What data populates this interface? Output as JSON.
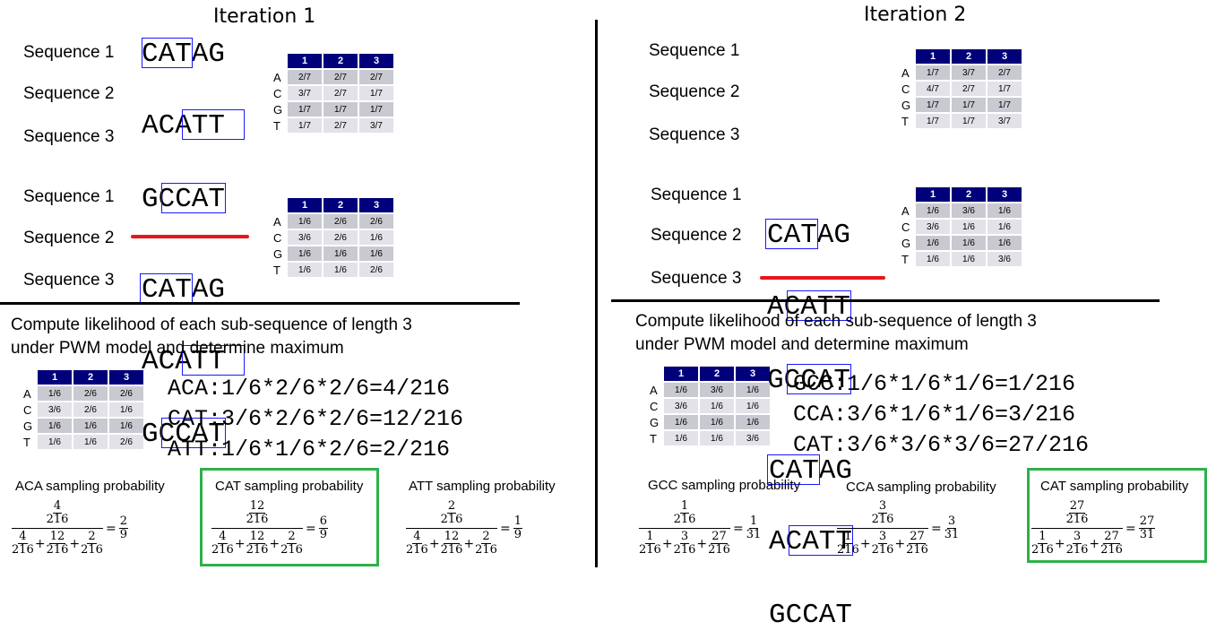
{
  "left": {
    "title": "Iteration 1",
    "block1": {
      "sequences": [
        {
          "label": "Sequence 1",
          "text": "CATAG"
        },
        {
          "label": "Sequence 2",
          "text": "ACATT"
        },
        {
          "label": "Sequence 3",
          "text": "GCCAT"
        }
      ],
      "pwm": {
        "headers": [
          "1",
          "2",
          "3"
        ],
        "rows": [
          {
            "base": "A",
            "values": [
              "2/7",
              "2/7",
              "2/7"
            ]
          },
          {
            "base": "C",
            "values": [
              "3/7",
              "2/7",
              "1/7"
            ]
          },
          {
            "base": "G",
            "values": [
              "1/7",
              "1/7",
              "1/7"
            ]
          },
          {
            "base": "T",
            "values": [
              "1/7",
              "2/7",
              "3/7"
            ]
          }
        ]
      }
    },
    "block2": {
      "sequences": [
        {
          "label": "Sequence 1",
          "text": "CATAG"
        },
        {
          "label": "Sequence 2",
          "text": "ACATT"
        },
        {
          "label": "Sequence 3",
          "text": "GCCAT"
        }
      ],
      "pwm": {
        "headers": [
          "1",
          "2",
          "3"
        ],
        "rows": [
          {
            "base": "A",
            "values": [
              "1/6",
              "2/6",
              "2/6"
            ]
          },
          {
            "base": "C",
            "values": [
              "3/6",
              "2/6",
              "1/6"
            ]
          },
          {
            "base": "G",
            "values": [
              "1/6",
              "1/6",
              "1/6"
            ]
          },
          {
            "base": "T",
            "values": [
              "1/6",
              "1/6",
              "2/6"
            ]
          }
        ]
      }
    },
    "heading_line1": "Compute likelihood of each sub-sequence of length 3",
    "heading_line2": "under PWM model and determine maximum",
    "pwm3": {
      "headers": [
        "1",
        "2",
        "3"
      ],
      "rows": [
        {
          "base": "A",
          "values": [
            "1/6",
            "2/6",
            "2/6"
          ]
        },
        {
          "base": "C",
          "values": [
            "3/6",
            "2/6",
            "1/6"
          ]
        },
        {
          "base": "G",
          "values": [
            "1/6",
            "1/6",
            "1/6"
          ]
        },
        {
          "base": "T",
          "values": [
            "1/6",
            "1/6",
            "2/6"
          ]
        }
      ]
    },
    "calcs": [
      "ACA:1/6*2/6*2/6=4/216",
      "CAT:3/6*2/6*2/6=12/216",
      "ATT:1/6*1/6*2/6=2/216"
    ],
    "probs": [
      {
        "title": "ACA sampling probability",
        "num": "4",
        "den": "216",
        "terms": [
          "4",
          "12",
          "2"
        ],
        "result_num": "2",
        "result_den": "9"
      },
      {
        "title": "CAT sampling probability",
        "num": "12",
        "den": "216",
        "terms": [
          "4",
          "12",
          "2"
        ],
        "result_num": "6",
        "result_den": "9"
      },
      {
        "title": "ATT sampling probability",
        "num": "2",
        "den": "216",
        "terms": [
          "4",
          "12",
          "2"
        ],
        "result_num": "1",
        "result_den": "9"
      }
    ]
  },
  "right": {
    "title": "Iteration 2",
    "block1": {
      "sequences": [
        {
          "label": "Sequence 1",
          "text": "CATAG"
        },
        {
          "label": "Sequence 2",
          "text": "ACATT"
        },
        {
          "label": "Sequence 3",
          "text": "GCCAT"
        }
      ],
      "pwm": {
        "headers": [
          "1",
          "2",
          "3"
        ],
        "rows": [
          {
            "base": "A",
            "values": [
              "1/7",
              "3/7",
              "2/7"
            ]
          },
          {
            "base": "C",
            "values": [
              "4/7",
              "2/7",
              "1/7"
            ]
          },
          {
            "base": "G",
            "values": [
              "1/7",
              "1/7",
              "1/7"
            ]
          },
          {
            "base": "T",
            "values": [
              "1/7",
              "1/7",
              "3/7"
            ]
          }
        ]
      }
    },
    "block2": {
      "sequences": [
        {
          "label": "Sequence 1",
          "text": "CATAG"
        },
        {
          "label": "Sequence 2",
          "text": "ACATT"
        },
        {
          "label": "Sequence 3",
          "text": "GCCAT"
        }
      ],
      "pwm": {
        "headers": [
          "1",
          "2",
          "3"
        ],
        "rows": [
          {
            "base": "A",
            "values": [
              "1/6",
              "3/6",
              "1/6"
            ]
          },
          {
            "base": "C",
            "values": [
              "3/6",
              "1/6",
              "1/6"
            ]
          },
          {
            "base": "G",
            "values": [
              "1/6",
              "1/6",
              "1/6"
            ]
          },
          {
            "base": "T",
            "values": [
              "1/6",
              "1/6",
              "3/6"
            ]
          }
        ]
      }
    },
    "heading_line1": "Compute likelihood of each sub-sequence of length 3",
    "heading_line2": "under PWM model and determine maximum",
    "pwm3": {
      "headers": [
        "1",
        "2",
        "3"
      ],
      "rows": [
        {
          "base": "A",
          "values": [
            "1/6",
            "3/6",
            "1/6"
          ]
        },
        {
          "base": "C",
          "values": [
            "3/6",
            "1/6",
            "1/6"
          ]
        },
        {
          "base": "G",
          "values": [
            "1/6",
            "1/6",
            "1/6"
          ]
        },
        {
          "base": "T",
          "values": [
            "1/6",
            "1/6",
            "3/6"
          ]
        }
      ]
    },
    "calcs": [
      "GCC:1/6*1/6*1/6=1/216",
      "CCA:3/6*1/6*1/6=3/216",
      "CAT:3/6*3/6*3/6=27/216"
    ],
    "probs": [
      {
        "title": "GCC sampling probability",
        "num": "1",
        "den": "216",
        "terms": [
          "1",
          "3",
          "27"
        ],
        "result_num": "1",
        "result_den": "31"
      },
      {
        "title": "CCA sampling probability",
        "num": "3",
        "den": "216",
        "terms": [
          "1",
          "3",
          "27"
        ],
        "result_num": "3",
        "result_den": "31"
      },
      {
        "title": "CAT sampling probability",
        "num": "27",
        "den": "216",
        "terms": [
          "1",
          "3",
          "27"
        ],
        "result_num": "27",
        "result_den": "31"
      }
    ]
  }
}
